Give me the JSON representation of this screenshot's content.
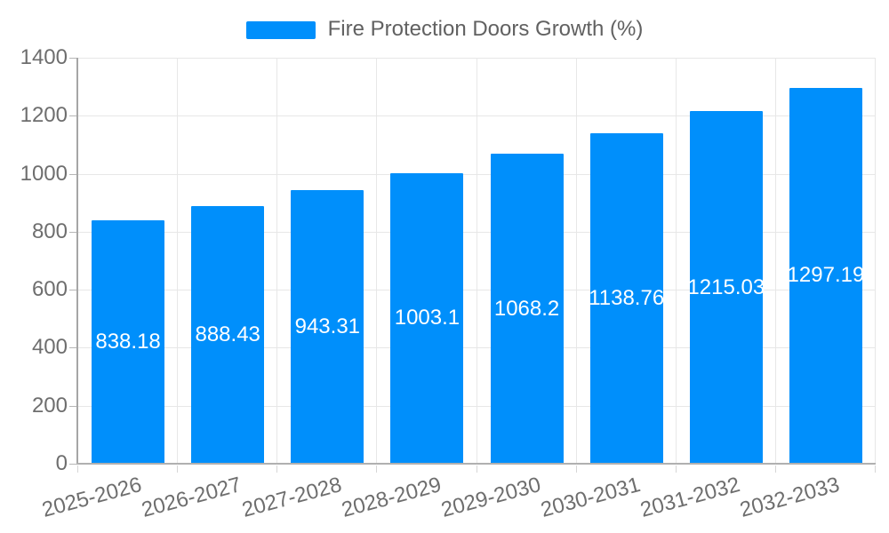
{
  "chart_data": {
    "type": "bar",
    "title": "Fire Protection Doors Growth (%)",
    "categories": [
      "2025-2026",
      "2026-2027",
      "2027-2028",
      "2028-2029",
      "2029-2030",
      "2030-2031",
      "2031-2032",
      "2032-2033"
    ],
    "values": [
      838.18,
      888.43,
      943.31,
      1003.1,
      1068.2,
      1138.76,
      1215.03,
      1297.19
    ],
    "value_labels": [
      "838.18",
      "888.43",
      "943.31",
      "1003.1",
      "1068.2",
      "1138.76",
      "1215.03",
      "1297.19"
    ],
    "xlabel": "",
    "ylabel": "",
    "ylim": [
      0,
      1400
    ],
    "ytick_step": 200,
    "ytick_labels": [
      "0",
      "200",
      "400",
      "600",
      "800",
      "1000",
      "1200",
      "1400"
    ],
    "grid": true,
    "legend_position": "top",
    "legend": {
      "label": "Fire Protection Doors Growth (%)"
    },
    "colors": {
      "bar": "#008FFB",
      "bar_label_text": "#ffffff",
      "axis_text": "#6e6e6e",
      "legend_text": "#616161",
      "gridline": "#e7e7e7",
      "axis_line": "#a6a6a6"
    }
  }
}
